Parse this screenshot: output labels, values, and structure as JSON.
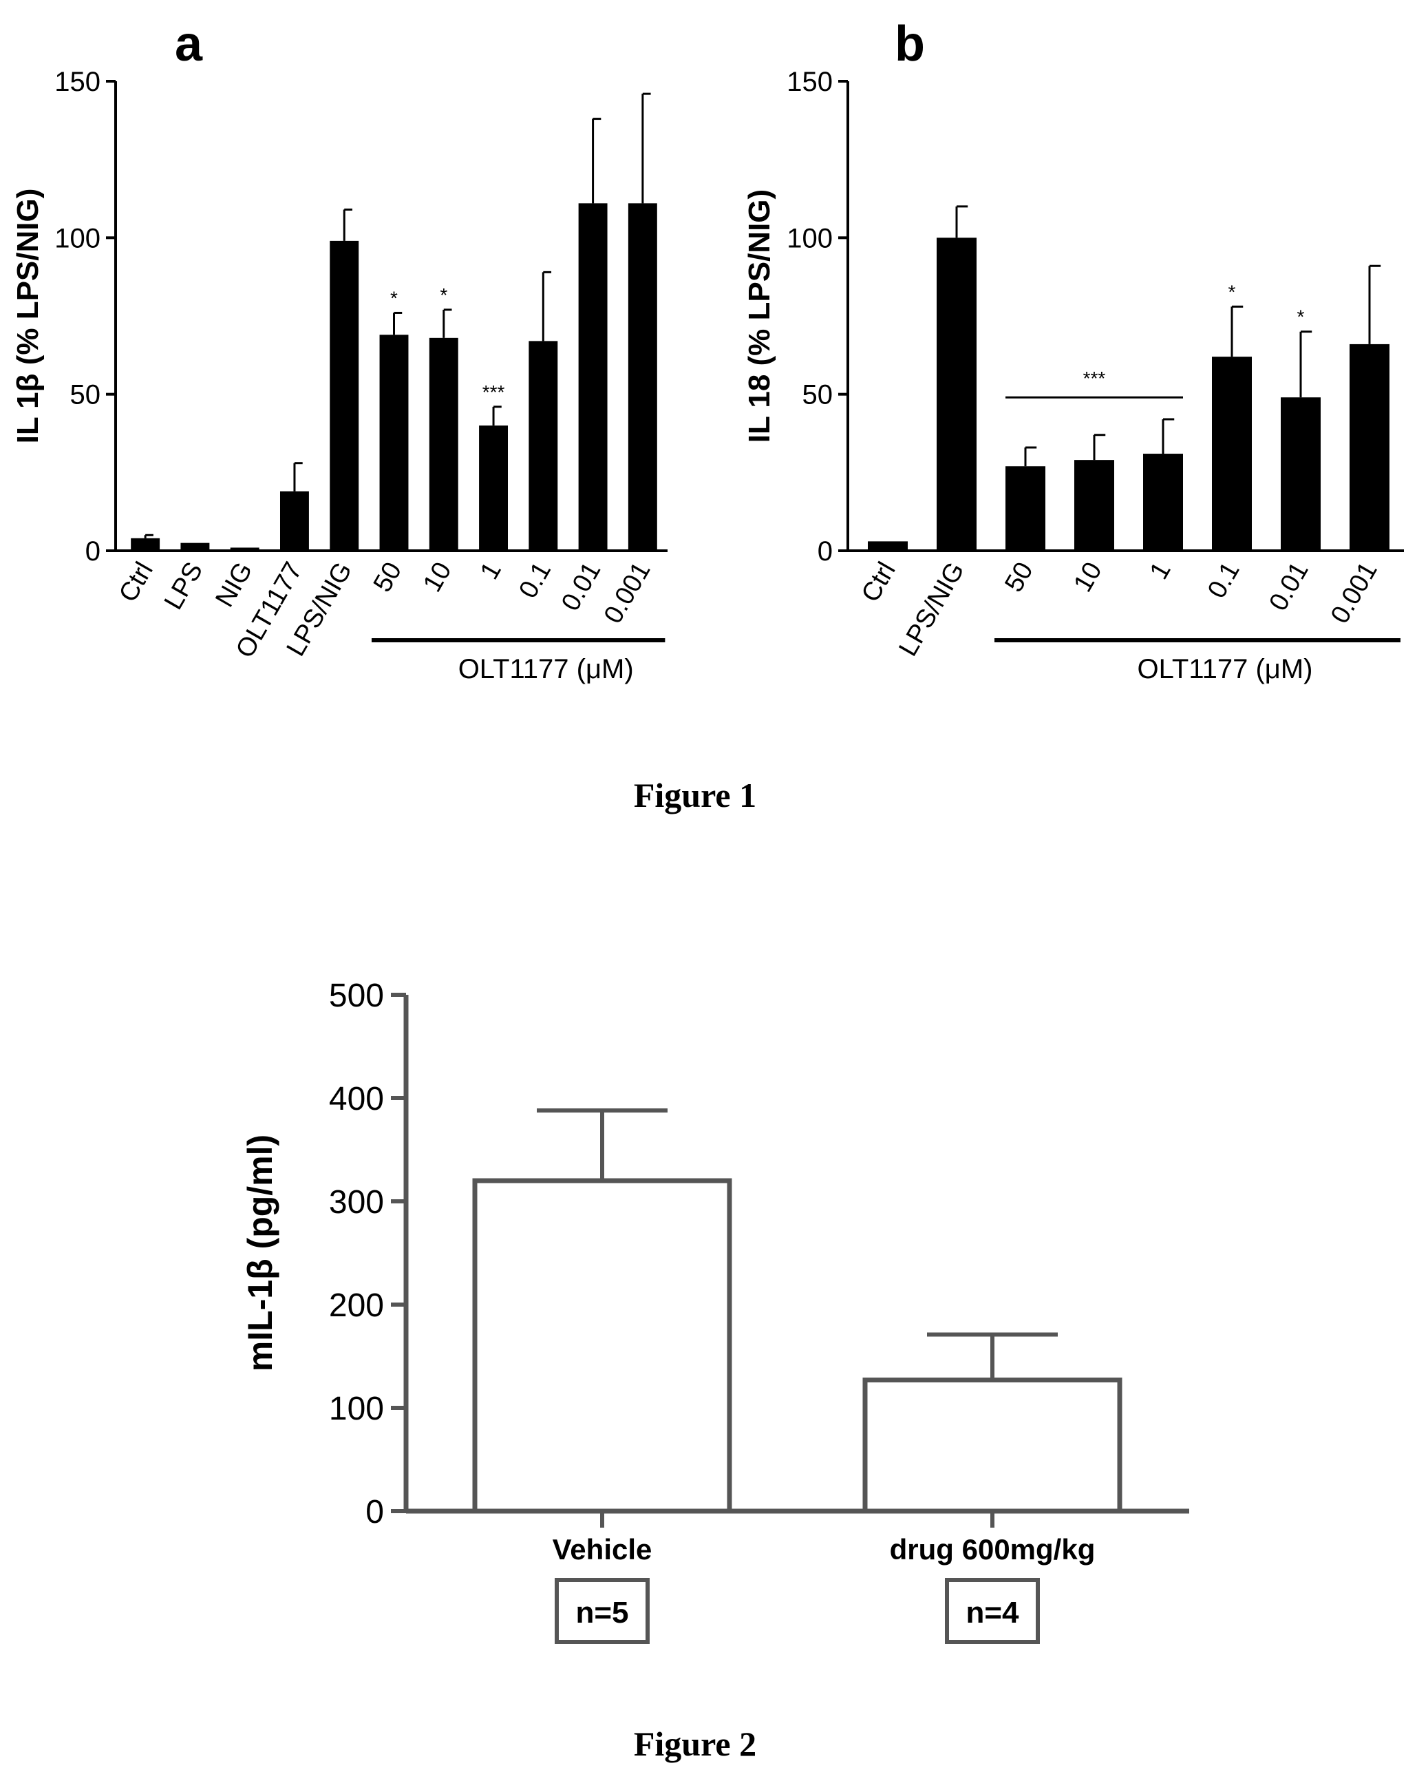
{
  "figure1": {
    "caption": "Figure 1",
    "panels": [
      {
        "panel_label": "a",
        "chart_data": {
          "type": "bar",
          "ylabel": "IL 1β (% LPS/NIG)",
          "ylim": [
            0,
            150
          ],
          "yticks": [
            "0",
            "50",
            "100",
            "150"
          ],
          "categories": [
            "Ctrl",
            "LPS",
            "NIG",
            "OLT1177",
            "LPS/NIG",
            "50",
            "10",
            "1",
            "0.1",
            "0.01",
            "0.001"
          ],
          "values": [
            4,
            2.5,
            1,
            19,
            99,
            69,
            68,
            40,
            67,
            111,
            111
          ],
          "errors": [
            1,
            0.5,
            0.3,
            9,
            10,
            7,
            9,
            6,
            22,
            27,
            35
          ],
          "significance": [
            "",
            "",
            "",
            "",
            "",
            "*",
            "*",
            "***",
            "",
            "",
            ""
          ],
          "group_label": "OLT1177 (μM)",
          "group_range": [
            5,
            10
          ]
        }
      },
      {
        "panel_label": "b",
        "chart_data": {
          "type": "bar",
          "ylabel": "IL 18 (% LPS/NIG)",
          "ylim": [
            0,
            150
          ],
          "yticks": [
            "0",
            "50",
            "100",
            "150"
          ],
          "categories": [
            "Ctrl",
            "LPS/NIG",
            "50",
            "10",
            "1",
            "0.1",
            "0.01",
            "0.001"
          ],
          "values": [
            3,
            100,
            27,
            29,
            31,
            62,
            49,
            66
          ],
          "errors": [
            0.5,
            10,
            6,
            8,
            11,
            16,
            21,
            25
          ],
          "significance": [
            "",
            "",
            "",
            "",
            "",
            "*",
            "*",
            ""
          ],
          "bracket": {
            "label": "***",
            "from": 2,
            "to": 4,
            "y": 49
          },
          "group_label": "OLT1177 (μM)",
          "group_range": [
            2,
            7
          ]
        }
      }
    ]
  },
  "figure2": {
    "caption": "Figure 2",
    "chart_data": {
      "type": "bar",
      "ylabel": "mIL-1β (pg/ml)",
      "ylim": [
        0,
        500
      ],
      "yticks": [
        "0",
        "100",
        "200",
        "300",
        "400",
        "500"
      ],
      "categories": [
        "Vehicle",
        "drug 600mg/kg"
      ],
      "values": [
        320,
        127
      ],
      "errors": [
        68,
        44
      ],
      "n_labels": [
        "n=5",
        "n=4"
      ]
    }
  }
}
